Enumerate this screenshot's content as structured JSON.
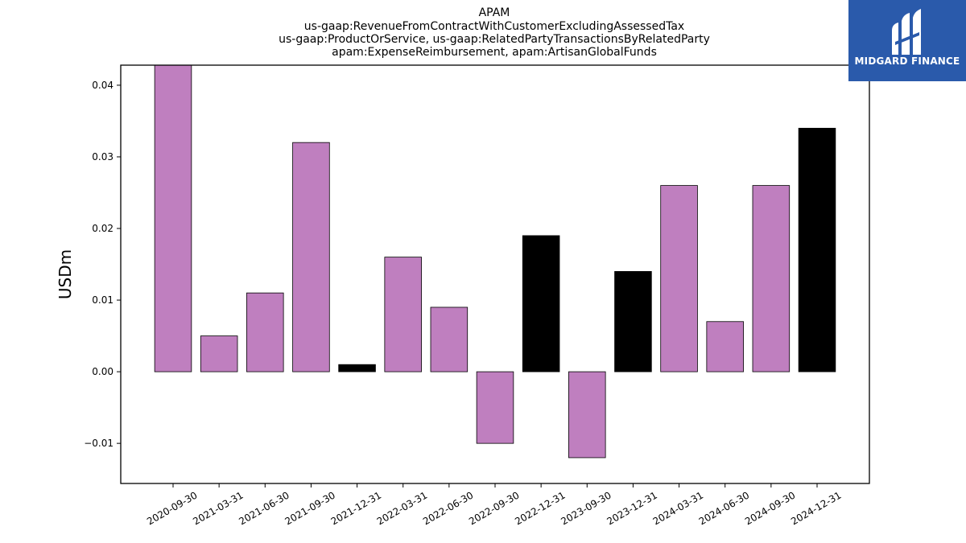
{
  "chart_data": {
    "type": "bar",
    "title_lines": [
      "APAM",
      "us-gaap:RevenueFromContractWithCustomerExcludingAssessedTax",
      "us-gaap:ProductOrService, us-gaap:RelatedPartyTransactionsByRelatedParty",
      "apam:ExpenseReimbursement, apam:ArtisanGlobalFunds"
    ],
    "ylabel": "USDm",
    "xlabel": "",
    "ylim": [
      -0.0156,
      0.0428
    ],
    "yticks": [
      -0.01,
      0.0,
      0.01,
      0.02,
      0.03,
      0.04
    ],
    "ytick_labels": [
      "−0.01",
      "0.00",
      "0.01",
      "0.02",
      "0.03",
      "0.04"
    ],
    "categories": [
      "2020-09-30",
      "2021-03-31",
      "2021-06-30",
      "2021-09-30",
      "2021-12-31",
      "2022-03-31",
      "2022-06-30",
      "2022-09-30",
      "2022-12-31",
      "2023-09-30",
      "2023-12-31",
      "2024-03-31",
      "2024-06-30",
      "2024-09-30",
      "2024-12-31"
    ],
    "values": [
      0.043,
      0.005,
      0.011,
      0.032,
      0.001,
      0.016,
      0.009,
      -0.01,
      0.019,
      -0.012,
      0.014,
      0.026,
      0.007,
      0.026,
      0.034
    ],
    "bar_colors": [
      "#bf7fbf",
      "#bf7fbf",
      "#bf7fbf",
      "#bf7fbf",
      "#000000",
      "#bf7fbf",
      "#bf7fbf",
      "#bf7fbf",
      "#000000",
      "#bf7fbf",
      "#000000",
      "#bf7fbf",
      "#bf7fbf",
      "#bf7fbf",
      "#000000"
    ],
    "grid": false,
    "legend": "none"
  },
  "logo": {
    "text": "MIDGARD FINANCE",
    "background": "#2a5aab",
    "icon": "midgard-logo-icon"
  }
}
